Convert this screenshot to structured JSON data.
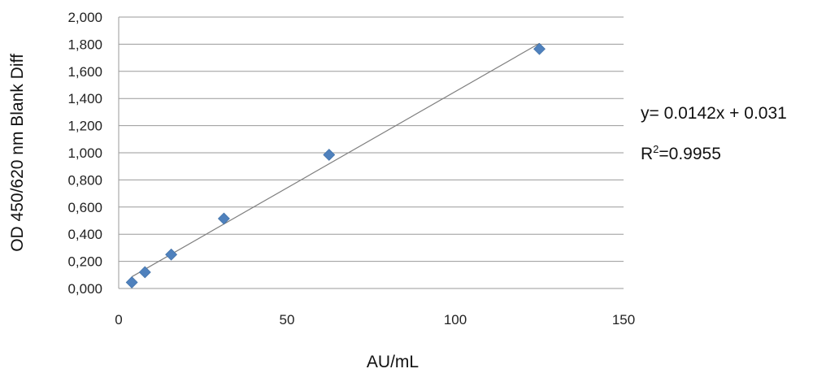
{
  "chart_data": {
    "type": "scatter",
    "title": "",
    "xlabel": "AU/mL",
    "ylabel": "OD 450/620 nm Blank Diff",
    "xlim": [
      0,
      150
    ],
    "ylim": [
      0,
      2
    ],
    "x_ticks": [
      0,
      50,
      100,
      150
    ],
    "x_tick_labels": [
      "0",
      "50",
      "100",
      "150"
    ],
    "y_ticks": [
      0,
      0.2,
      0.4,
      0.6,
      0.8,
      1.0,
      1.2,
      1.4,
      1.6,
      1.8,
      2.0
    ],
    "y_tick_labels": [
      "0,000",
      "0,200",
      "0,400",
      "0,600",
      "0,800",
      "1,000",
      "1,200",
      "1,400",
      "1,600",
      "1,800",
      "2,000"
    ],
    "grid": "horizontal",
    "series": [
      {
        "x": [
          3.9,
          7.8,
          15.6,
          31.25,
          62.5,
          125
        ],
        "y": [
          0.045,
          0.12,
          0.25,
          0.515,
          0.985,
          1.765
        ],
        "marker": "diamond",
        "color": "#4f81bd"
      }
    ],
    "trendline": {
      "slope": 0.0142,
      "intercept": 0.031,
      "x_range": [
        3.9,
        125
      ],
      "color": "#7f7f7f"
    },
    "annotations": {
      "equation_prefix": "y= 0.0142x + 0.031",
      "r2_base": "R",
      "r2_sup": "2",
      "r2_value": "=0.9955"
    }
  }
}
